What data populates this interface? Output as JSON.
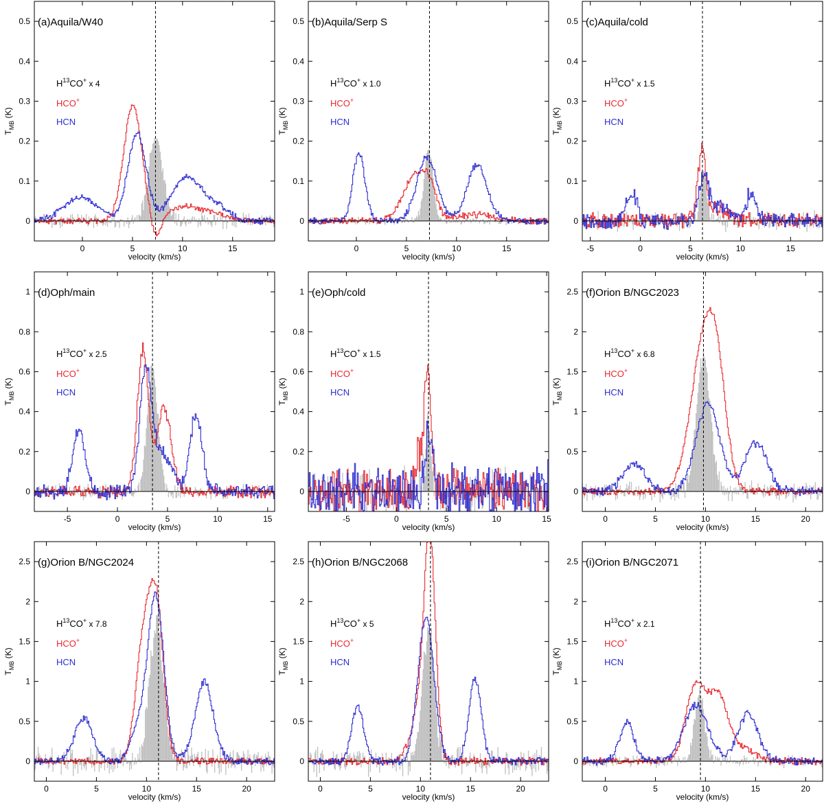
{
  "figure": {
    "xlabel": "velocity (km/s)",
    "ylabel_main": "T",
    "ylabel_sub": "MB",
    "ylabel_unit": " (K)"
  },
  "legend": {
    "h13co_prefix": "H",
    "h13co_sup13": "13",
    "h13co_mid": "CO",
    "h13co_supplus": "+",
    "hcop_label": "HCO",
    "hcop_sup": "+",
    "hcn_label": "HCN"
  },
  "colors": {
    "h13co": "#c0c0c0",
    "hcop": "#e8262c",
    "hcn": "#2b2bd0",
    "axis": "#000000",
    "vline": "#000000"
  },
  "chart_data": [
    {
      "type": "line",
      "title": "(a)Aquila/W40",
      "scale_label": "x 4",
      "xlim": [
        -4.8,
        19.2
      ],
      "ylim": [
        -0.05,
        0.55
      ],
      "xticks": [
        0,
        5,
        10,
        15
      ],
      "yticks": [
        0,
        0.1,
        0.2,
        0.3,
        0.4,
        0.5
      ],
      "vsys": 7.3,
      "series": [
        {
          "name": "H13CO+",
          "style": "bars",
          "noise": 0.014,
          "peaks": [
            [
              7.3,
              0.21,
              0.7
            ]
          ]
        },
        {
          "name": "HCO+",
          "style": "step",
          "noise": 0.005,
          "peaks": [
            [
              5.0,
              0.29,
              0.9
            ],
            [
              7.3,
              -0.05,
              0.5
            ],
            [
              10.0,
              0.035,
              1.4
            ],
            [
              13.0,
              0.02,
              1.5
            ]
          ]
        },
        {
          "name": "HCN",
          "style": "step",
          "noise": 0.006,
          "peaks": [
            [
              -0.2,
              0.06,
              1.7
            ],
            [
              5.4,
              0.22,
              0.9
            ],
            [
              10.4,
              0.11,
              1.5
            ],
            [
              13.5,
              0.03,
              1.2
            ]
          ]
        }
      ]
    },
    {
      "type": "line",
      "title": "(b)Aquila/Serp S",
      "scale_label": "x 1.0",
      "xlim": [
        -4.8,
        19.2
      ],
      "ylim": [
        -0.05,
        0.55
      ],
      "xticks": [
        0,
        5,
        10,
        15
      ],
      "yticks": [
        0,
        0.1,
        0.2,
        0.3,
        0.4,
        0.5
      ],
      "vsys": 7.3,
      "series": [
        {
          "name": "H13CO+",
          "style": "bars",
          "noise": 0.007,
          "peaks": [
            [
              7.2,
              0.18,
              0.45
            ]
          ]
        },
        {
          "name": "HCO+",
          "style": "step",
          "noise": 0.006,
          "peaks": [
            [
              5.8,
              0.11,
              1.2
            ],
            [
              7.3,
              0.06,
              0.7
            ],
            [
              12.0,
              0.015,
              2.0
            ]
          ]
        },
        {
          "name": "HCN",
          "style": "step",
          "noise": 0.006,
          "peaks": [
            [
              0.2,
              0.17,
              0.6
            ],
            [
              7.0,
              0.16,
              1.0
            ],
            [
              12.0,
              0.14,
              1.0
            ]
          ]
        }
      ]
    },
    {
      "type": "line",
      "title": "(c)Aquila/cold",
      "scale_label": "x 1.5",
      "xlim": [
        -5.8,
        18.2
      ],
      "ylim": [
        -0.05,
        0.55
      ],
      "xticks": [
        -5,
        0,
        5,
        10,
        15
      ],
      "yticks": [
        0,
        0.1,
        0.2,
        0.3,
        0.4,
        0.5
      ],
      "vsys": 6.2,
      "series": [
        {
          "name": "H13CO+",
          "style": "bars",
          "noise": 0.018,
          "peaks": [
            [
              6.3,
              0.12,
              0.35
            ]
          ]
        },
        {
          "name": "HCO+",
          "style": "step",
          "noise": 0.014,
          "peaks": [
            [
              6.1,
              0.16,
              0.4
            ],
            [
              7.5,
              0.03,
              1.2
            ]
          ]
        },
        {
          "name": "HCN",
          "style": "step",
          "noise": 0.015,
          "peaks": [
            [
              -0.9,
              0.07,
              0.5
            ],
            [
              6.3,
              0.11,
              0.5
            ],
            [
              8.0,
              0.04,
              0.8
            ],
            [
              11.0,
              0.07,
              0.5
            ]
          ]
        }
      ]
    },
    {
      "type": "line",
      "title": "(d)Oph/main",
      "scale_label": "x 2.5",
      "xlim": [
        -8.3,
        15.7
      ],
      "ylim": [
        -0.1,
        1.1
      ],
      "xticks": [
        -5,
        0,
        5,
        10,
        15
      ],
      "yticks": [
        0,
        0.2,
        0.4,
        0.6,
        0.8,
        1
      ],
      "vsys": 3.5,
      "series": [
        {
          "name": "H13CO+",
          "style": "bars",
          "noise": 0.03,
          "peaks": [
            [
              3.5,
              0.62,
              0.55
            ]
          ]
        },
        {
          "name": "HCO+",
          "style": "step",
          "noise": 0.022,
          "peaks": [
            [
              2.5,
              0.71,
              0.55
            ],
            [
              4.6,
              0.42,
              0.7
            ]
          ]
        },
        {
          "name": "HCN",
          "style": "step",
          "noise": 0.028,
          "peaks": [
            [
              -3.9,
              0.31,
              0.6
            ],
            [
              2.8,
              0.62,
              0.6
            ],
            [
              4.6,
              0.18,
              0.9
            ],
            [
              7.8,
              0.39,
              0.6
            ]
          ]
        }
      ]
    },
    {
      "type": "line",
      "title": "(e)Oph/cold",
      "scale_label": "x 1.5",
      "xlim": [
        -8.8,
        15.2
      ],
      "ylim": [
        -0.1,
        1.1
      ],
      "xticks": [
        -5,
        0,
        5,
        10,
        15
      ],
      "yticks": [
        0,
        0.2,
        0.4,
        0.6,
        0.8,
        1
      ],
      "vsys": 3.2,
      "series": [
        {
          "name": "H13CO+",
          "style": "bars",
          "noise": 0.09,
          "peaks": [
            [
              3.2,
              0.35,
              0.3
            ]
          ]
        },
        {
          "name": "HCO+",
          "style": "step",
          "noise": 0.08,
          "peaks": [
            [
              3.1,
              0.58,
              0.3
            ],
            [
              2.3,
              0.2,
              0.4
            ]
          ]
        },
        {
          "name": "HCN",
          "style": "step",
          "noise": 0.1,
          "peaks": [
            [
              3.2,
              0.32,
              0.35
            ]
          ]
        }
      ]
    },
    {
      "type": "line",
      "title": "(f)Orion B/NGC2023",
      "scale_label": "x 6.8",
      "xlim": [
        -2.3,
        21.7
      ],
      "ylim": [
        -0.25,
        2.75
      ],
      "xticks": [
        0,
        5,
        10,
        15,
        20
      ],
      "yticks": [
        0,
        0.5,
        1,
        1.5,
        2,
        2.5
      ],
      "vsys": 9.8,
      "series": [
        {
          "name": "H13CO+",
          "style": "bars",
          "noise": 0.09,
          "peaks": [
            [
              9.8,
              1.7,
              0.7
            ]
          ]
        },
        {
          "name": "HCO+",
          "style": "step",
          "noise": 0.03,
          "peaks": [
            [
              9.8,
              1.85,
              1.3
            ],
            [
              11.2,
              0.9,
              0.9
            ]
          ]
        },
        {
          "name": "HCN",
          "style": "step",
          "noise": 0.04,
          "peaks": [
            [
              2.8,
              0.35,
              1.1
            ],
            [
              10.2,
              1.1,
              1.2
            ],
            [
              15.0,
              0.6,
              1.1
            ]
          ]
        }
      ]
    },
    {
      "type": "line",
      "title": "(g)Orion B/NGC2024",
      "scale_label": "x 7.8",
      "xlim": [
        -1.2,
        22.8
      ],
      "ylim": [
        -0.25,
        2.75
      ],
      "xticks": [
        0,
        5,
        10,
        15,
        20
      ],
      "yticks": [
        0,
        0.5,
        1,
        1.5,
        2,
        2.5
      ],
      "vsys": 11.2,
      "series": [
        {
          "name": "H13CO+",
          "style": "bars",
          "noise": 0.13,
          "peaks": [
            [
              11.0,
              1.75,
              0.7
            ]
          ]
        },
        {
          "name": "HCO+",
          "style": "step",
          "noise": 0.03,
          "peaks": [
            [
              9.7,
              1.5,
              0.8
            ],
            [
              11.0,
              1.75,
              0.7
            ]
          ]
        },
        {
          "name": "HCN",
          "style": "step",
          "noise": 0.035,
          "peaks": [
            [
              3.7,
              0.55,
              0.9
            ],
            [
              10.9,
              2.05,
              0.8
            ],
            [
              9.2,
              0.4,
              0.8
            ],
            [
              15.7,
              1.0,
              0.9
            ]
          ]
        }
      ]
    },
    {
      "type": "line",
      "title": "(h)Orion B/NGC2068",
      "scale_label": "x 5",
      "xlim": [
        -1.2,
        22.8
      ],
      "ylim": [
        -0.25,
        2.75
      ],
      "xticks": [
        0,
        5,
        10,
        15,
        20
      ],
      "yticks": [
        0,
        0.5,
        1,
        1.5,
        2,
        2.5
      ],
      "vsys": 11.0,
      "series": [
        {
          "name": "H13CO+",
          "style": "bars",
          "noise": 0.13,
          "peaks": [
            [
              10.8,
              1.7,
              0.55
            ]
          ]
        },
        {
          "name": "HCO+",
          "style": "step",
          "noise": 0.035,
          "peaks": [
            [
              10.9,
              2.5,
              0.55
            ],
            [
              10.0,
              0.7,
              0.9
            ]
          ]
        },
        {
          "name": "HCN",
          "style": "step",
          "noise": 0.035,
          "peaks": [
            [
              3.7,
              0.7,
              0.6
            ],
            [
              10.5,
              1.8,
              0.8
            ],
            [
              15.4,
              1.05,
              0.6
            ]
          ]
        }
      ]
    },
    {
      "type": "line",
      "title": "(i)Orion B/NGC2071",
      "scale_label": "x 2.1",
      "xlim": [
        -2.3,
        21.7
      ],
      "ylim": [
        -0.25,
        2.75
      ],
      "xticks": [
        0,
        5,
        10,
        15,
        20
      ],
      "yticks": [
        0,
        0.5,
        1,
        1.5,
        2,
        2.5
      ],
      "vsys": 9.5,
      "series": [
        {
          "name": "H13CO+",
          "style": "bars",
          "noise": 0.06,
          "peaks": [
            [
              9.4,
              0.85,
              0.5
            ]
          ]
        },
        {
          "name": "HCO+",
          "style": "step",
          "noise": 0.03,
          "peaks": [
            [
              9.0,
              0.95,
              1.0
            ],
            [
              11.2,
              0.7,
              0.9
            ],
            [
              13.0,
              0.2,
              1.5
            ]
          ]
        },
        {
          "name": "HCN",
          "style": "step",
          "noise": 0.035,
          "peaks": [
            [
              2.1,
              0.5,
              0.7
            ],
            [
              9.0,
              0.7,
              1.2
            ],
            [
              14.2,
              0.6,
              1.0
            ]
          ]
        }
      ]
    }
  ]
}
